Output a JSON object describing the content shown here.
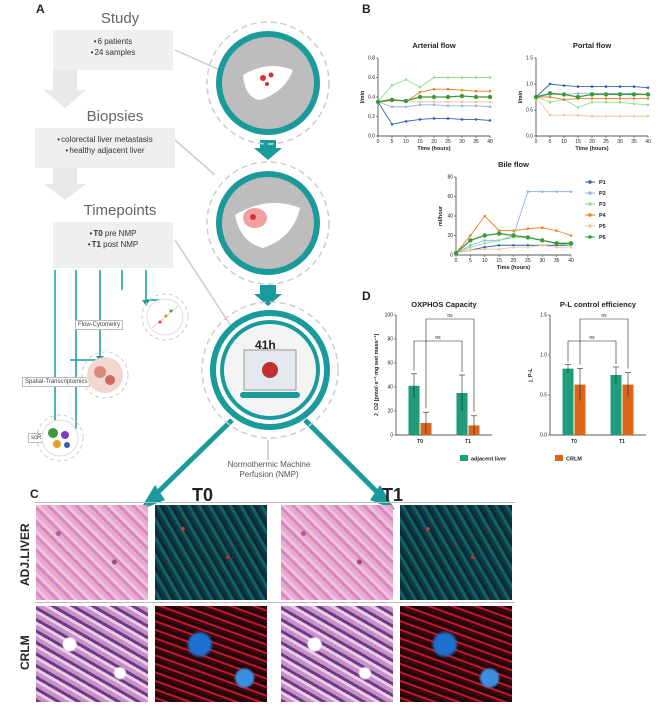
{
  "panels": {
    "a": "A",
    "b": "B",
    "c": "C",
    "d": "D"
  },
  "study": {
    "title": "Study",
    "items": [
      "6 patients",
      "24 samples"
    ]
  },
  "biopsies": {
    "title": "Biopsies",
    "items": [
      "colorectal liver metastasis",
      "healthy adjacent liver"
    ]
  },
  "timepoints": {
    "title": "Timepoints",
    "items": [
      {
        "bold": "T0",
        "text": " pre NMP"
      },
      {
        "bold": "T1",
        "text": " post NMP"
      }
    ]
  },
  "methods": [
    "Flow-Cytometry",
    "Spatial-Transcriptomics",
    "scRNA-seq"
  ],
  "nmp": {
    "duration": "41h",
    "caption": "Normothermic Machine Perfusion (NMP)"
  },
  "panel_c": {
    "timepoints": [
      "T0",
      "T1"
    ],
    "rows": [
      "ADJ.LIVER",
      "CRLM"
    ]
  },
  "chart_data": [
    {
      "type": "line",
      "title": "Arterial flow",
      "xlabel": "Time (hours)",
      "ylabel": "l/min",
      "xlim": [
        0,
        40
      ],
      "ylim": [
        0,
        0.8
      ],
      "xticks": [
        0,
        5,
        10,
        15,
        20,
        25,
        30,
        35,
        40
      ],
      "yticks": [
        0.0,
        0.2,
        0.4,
        0.6,
        0.8
      ],
      "x": [
        0,
        5,
        10,
        15,
        20,
        25,
        30,
        35,
        40
      ],
      "series": [
        {
          "name": "P1",
          "color": "#2c63b8",
          "values": [
            0.35,
            0.12,
            0.15,
            0.17,
            0.18,
            0.18,
            0.17,
            0.17,
            0.16
          ]
        },
        {
          "name": "P2",
          "color": "#8fb5e8",
          "values": [
            0.35,
            0.3,
            0.3,
            0.32,
            0.32,
            0.31,
            0.31,
            0.31,
            0.3
          ]
        },
        {
          "name": "P3",
          "color": "#8fe08a",
          "values": [
            0.35,
            0.52,
            0.58,
            0.5,
            0.6,
            0.6,
            0.6,
            0.6,
            0.6
          ]
        },
        {
          "name": "P4",
          "color": "#f07f22",
          "values": [
            0.35,
            0.38,
            0.35,
            0.45,
            0.48,
            0.48,
            0.47,
            0.46,
            0.46
          ]
        },
        {
          "name": "P5",
          "color": "#f6c49a",
          "values": [
            0.35,
            0.36,
            0.36,
            0.35,
            0.35,
            0.35,
            0.35,
            0.35,
            0.35
          ]
        },
        {
          "name": "P6",
          "color": "#3a9a3a",
          "values": [
            0.35,
            0.37,
            0.36,
            0.4,
            0.4,
            0.4,
            0.41,
            0.4,
            0.4
          ]
        }
      ]
    },
    {
      "type": "line",
      "title": "Portal flow",
      "xlabel": "Time (hours)",
      "ylabel": "l/min",
      "xlim": [
        0,
        40
      ],
      "ylim": [
        0.0,
        1.5
      ],
      "xticks": [
        0,
        5,
        10,
        15,
        20,
        25,
        30,
        35,
        40
      ],
      "yticks": [
        0.0,
        0.5,
        1.0,
        1.5
      ],
      "x": [
        0,
        5,
        10,
        15,
        20,
        25,
        30,
        35,
        40
      ],
      "series": [
        {
          "name": "P1",
          "color": "#2c63b8",
          "values": [
            0.75,
            1.0,
            0.97,
            0.95,
            0.95,
            0.95,
            0.95,
            0.95,
            0.93
          ]
        },
        {
          "name": "P2",
          "color": "#8fb5e8",
          "values": [
            0.75,
            0.8,
            0.8,
            0.82,
            0.82,
            0.82,
            0.82,
            0.82,
            0.8
          ]
        },
        {
          "name": "P3",
          "color": "#8fe08a",
          "values": [
            0.75,
            0.65,
            0.7,
            0.55,
            0.65,
            0.65,
            0.65,
            0.62,
            0.6
          ]
        },
        {
          "name": "P4",
          "color": "#f07f22",
          "values": [
            0.75,
            0.75,
            0.7,
            0.72,
            0.72,
            0.72,
            0.72,
            0.72,
            0.72
          ]
        },
        {
          "name": "P5",
          "color": "#f6c49a",
          "values": [
            0.75,
            0.4,
            0.4,
            0.4,
            0.38,
            0.38,
            0.38,
            0.38,
            0.38
          ]
        },
        {
          "name": "P6",
          "color": "#3a9a3a",
          "values": [
            0.75,
            0.82,
            0.8,
            0.75,
            0.8,
            0.8,
            0.8,
            0.8,
            0.8
          ]
        }
      ]
    },
    {
      "type": "line",
      "title": "Bile flow",
      "xlabel": "Time (hours)",
      "ylabel": "ml/hour",
      "xlim": [
        0,
        40
      ],
      "ylim": [
        0,
        80
      ],
      "xticks": [
        0,
        5,
        10,
        15,
        20,
        25,
        30,
        35,
        40
      ],
      "yticks": [
        0,
        20,
        40,
        60,
        80
      ],
      "x": [
        0,
        5,
        10,
        15,
        20,
        25,
        30,
        35,
        40
      ],
      "legend": "right",
      "series": [
        {
          "name": "P1",
          "color": "#2c63b8",
          "values": [
            2,
            5,
            8,
            10,
            10,
            10,
            10,
            10,
            10
          ]
        },
        {
          "name": "P2",
          "color": "#8fb5e8",
          "values": [
            2,
            10,
            15,
            15,
            20,
            65,
            65,
            65,
            65
          ]
        },
        {
          "name": "P3",
          "color": "#8fe08a",
          "values": [
            2,
            8,
            12,
            15,
            18,
            18,
            15,
            12,
            10
          ]
        },
        {
          "name": "P4",
          "color": "#f07f22",
          "values": [
            2,
            20,
            40,
            25,
            25,
            27,
            28,
            25,
            20
          ]
        },
        {
          "name": "P5",
          "color": "#f6c49a",
          "values": [
            2,
            5,
            6,
            6,
            8,
            8,
            10,
            8,
            8
          ]
        },
        {
          "name": "P6",
          "color": "#3a9a3a",
          "values": [
            2,
            15,
            20,
            22,
            20,
            18,
            15,
            12,
            12
          ]
        }
      ]
    },
    {
      "type": "bar",
      "title": "OXPHOS Capacity",
      "ylabel": "J_O2 [pmol·s⁻¹·mg wet mass⁻¹]",
      "ylim": [
        0,
        100
      ],
      "yticks": [
        0,
        20,
        40,
        60,
        80,
        100
      ],
      "categories": [
        "T0",
        "T1"
      ],
      "series": [
        {
          "name": "adjacent liver",
          "color": "#1f9c7a",
          "values": [
            41,
            35
          ],
          "errors": [
            10,
            15
          ]
        },
        {
          "name": "CRLM",
          "color": "#d9661a",
          "values": [
            10,
            8
          ],
          "errors": [
            9,
            8
          ]
        }
      ],
      "annotations": [
        "ns",
        "ns"
      ]
    },
    {
      "type": "bar",
      "title": "P-L control efficiency",
      "ylabel": "j_P-L",
      "ylim": [
        0,
        1.5
      ],
      "yticks": [
        0.0,
        0.5,
        1.0,
        1.5
      ],
      "categories": [
        "T0",
        "T1"
      ],
      "series": [
        {
          "name": "adjacent liver",
          "color": "#1f9c7a",
          "values": [
            0.83,
            0.75
          ],
          "errors": [
            0.05,
            0.1
          ]
        },
        {
          "name": "CRLM",
          "color": "#d9661a",
          "values": [
            0.63,
            0.63
          ],
          "errors": [
            0.2,
            0.15
          ]
        }
      ],
      "annotations": [
        "ns",
        "ns"
      ]
    }
  ],
  "bar_legend": [
    "adjacent liver",
    "CRLM"
  ],
  "colors": {
    "teal": "#1a9a9a",
    "gray": "#efefef"
  }
}
